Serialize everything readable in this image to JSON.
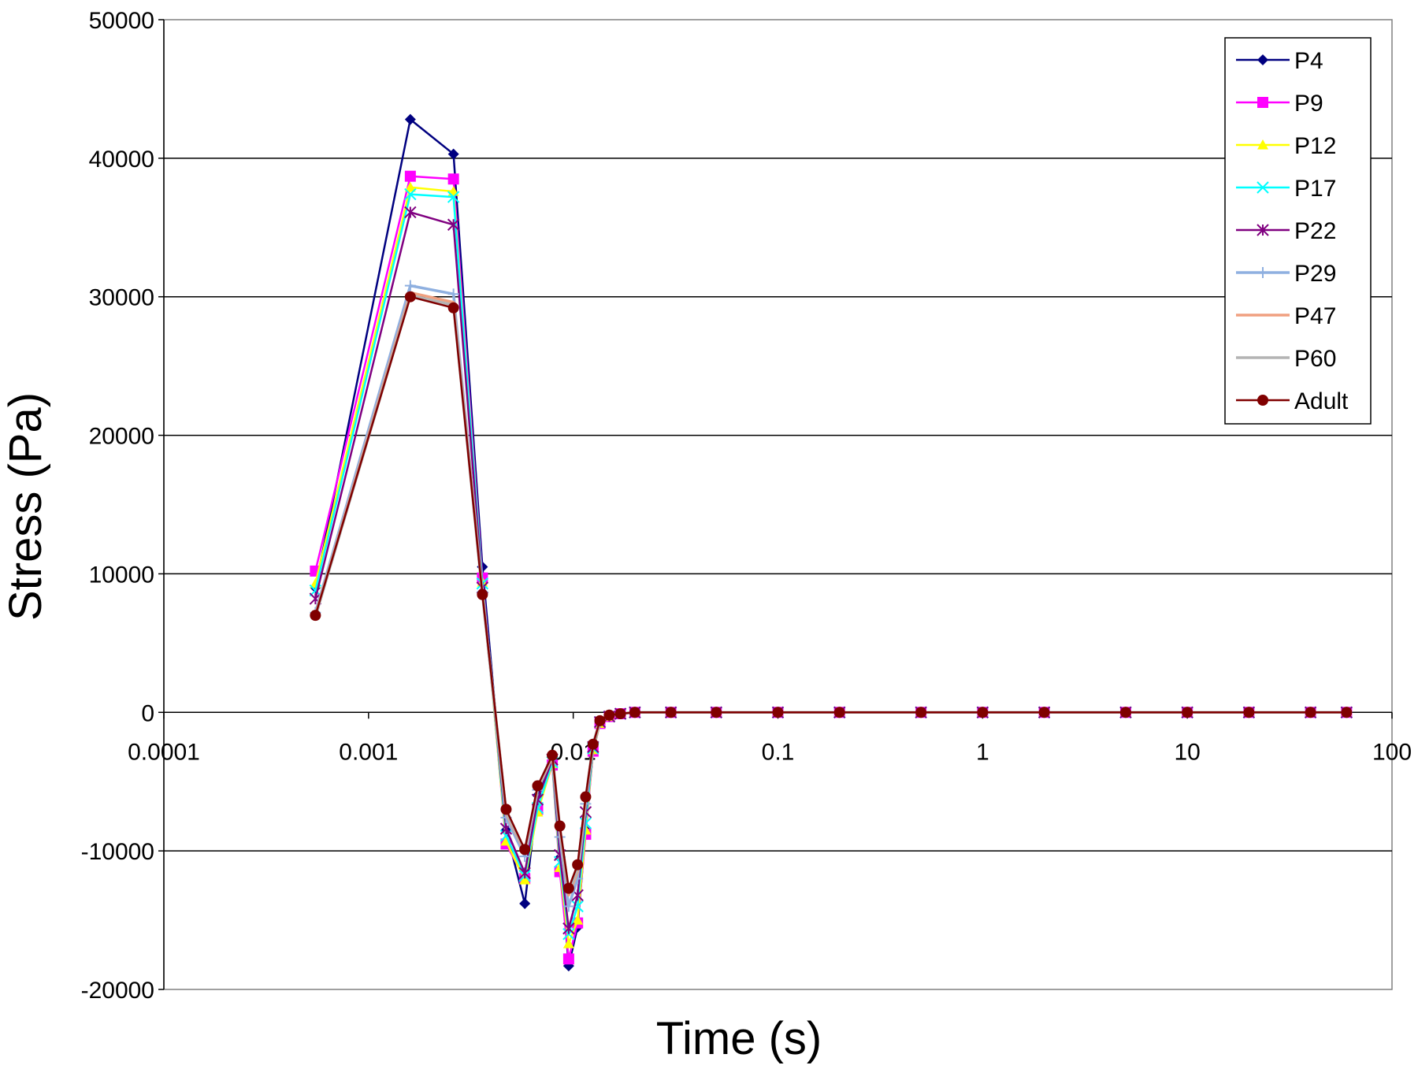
{
  "chart_data": {
    "type": "line",
    "title": "",
    "xlabel": "Time (s)",
    "ylabel": "Stress (Pa)",
    "x_scale": "log",
    "xlim": [
      0.0001,
      100
    ],
    "ylim": [
      -20000,
      50000
    ],
    "x_ticks": [
      "0.0001",
      "0.001",
      "0.01",
      "0.1",
      "1",
      "10",
      "100"
    ],
    "y_ticks": [
      "50000",
      "40000",
      "30000",
      "20000",
      "10000",
      "0",
      "-10000",
      "-20000"
    ],
    "grid": "horizontal",
    "legend_position": "top-right",
    "x": [
      0.00055,
      0.0016,
      0.0026,
      0.0036,
      0.0047,
      0.0058,
      0.0067,
      0.0079,
      0.0086,
      0.0095,
      0.0105,
      0.0115,
      0.0125,
      0.0135,
      0.015,
      0.017,
      0.02,
      0.03,
      0.05,
      0.1,
      0.2,
      0.5,
      1,
      2,
      5,
      10,
      20,
      40,
      60
    ],
    "series": [
      {
        "name": "P4",
        "color": "#000080",
        "marker": "diamond",
        "values": [
          9000,
          42800,
          40300,
          10500,
          -8500,
          -13800,
          -6000,
          -3500,
          -10500,
          -18300,
          -15500,
          -8500,
          -2800,
          -800,
          -300,
          -100,
          0,
          0,
          0,
          0,
          0,
          0,
          0,
          0,
          0,
          0,
          0,
          0,
          0
        ]
      },
      {
        "name": "P9",
        "color": "#ff00ff",
        "marker": "square",
        "values": [
          10200,
          38700,
          38500,
          9700,
          -9500,
          -12000,
          -7000,
          -3800,
          -11500,
          -17800,
          -15200,
          -8800,
          -2800,
          -800,
          -300,
          -100,
          0,
          0,
          0,
          0,
          0,
          0,
          0,
          0,
          0,
          0,
          0,
          0,
          0
        ]
      },
      {
        "name": "P12",
        "color": "#ffff00",
        "marker": "triangle",
        "values": [
          9300,
          37900,
          37600,
          9400,
          -9300,
          -12100,
          -7200,
          -3700,
          -11200,
          -16700,
          -15000,
          -8500,
          -2700,
          -800,
          -300,
          -100,
          0,
          0,
          0,
          0,
          0,
          0,
          0,
          0,
          0,
          0,
          0,
          0,
          0
        ]
      },
      {
        "name": "P17",
        "color": "#00ffff",
        "marker": "x",
        "values": [
          8800,
          37400,
          37200,
          9300,
          -8900,
          -11800,
          -6900,
          -3600,
          -10800,
          -16000,
          -14000,
          -8000,
          -2600,
          -700,
          -300,
          -100,
          0,
          0,
          0,
          0,
          0,
          0,
          0,
          0,
          0,
          0,
          0,
          0,
          0
        ]
      },
      {
        "name": "P22",
        "color": "#800080",
        "marker": "star",
        "values": [
          8200,
          36100,
          35200,
          9000,
          -8400,
          -11600,
          -6300,
          -3400,
          -10300,
          -15600,
          -13200,
          -7200,
          -2500,
          -700,
          -300,
          -100,
          0,
          0,
          0,
          0,
          0,
          0,
          0,
          0,
          0,
          0,
          0,
          0,
          0
        ]
      },
      {
        "name": "P29",
        "color": "#8fb0e0",
        "marker": "plus",
        "values": [
          7200,
          30800,
          30200,
          8700,
          -7600,
          -10400,
          -5600,
          -3200,
          -9000,
          -14000,
          -12000,
          -6600,
          -2300,
          -700,
          -200,
          -100,
          0,
          0,
          0,
          0,
          0,
          0,
          0,
          0,
          0,
          0,
          0,
          0,
          0
        ]
      },
      {
        "name": "P47",
        "color": "#f0a080",
        "marker": "none",
        "values": [
          7000,
          30300,
          29600,
          8600,
          -7300,
          -10100,
          -5500,
          -3200,
          -8500,
          -13200,
          -11500,
          -6300,
          -2300,
          -600,
          -200,
          -100,
          0,
          0,
          0,
          0,
          0,
          0,
          0,
          0,
          0,
          0,
          0,
          0,
          0
        ]
      },
      {
        "name": "P60",
        "color": "#b4b4b4",
        "marker": "none",
        "values": [
          6900,
          30100,
          29400,
          8500,
          -7200,
          -10000,
          -5400,
          -3100,
          -8300,
          -13000,
          -11300,
          -6200,
          -2300,
          -600,
          -200,
          -100,
          0,
          0,
          0,
          0,
          0,
          0,
          0,
          0,
          0,
          0,
          0,
          0,
          0
        ]
      },
      {
        "name": "Adult",
        "color": "#800000",
        "marker": "circle",
        "values": [
          7000,
          30000,
          29200,
          8500,
          -7000,
          -9900,
          -5300,
          -3100,
          -8200,
          -12700,
          -11000,
          -6100,
          -2300,
          -600,
          -200,
          -100,
          0,
          0,
          0,
          0,
          0,
          0,
          0,
          0,
          0,
          0,
          0,
          0,
          0
        ]
      }
    ]
  }
}
